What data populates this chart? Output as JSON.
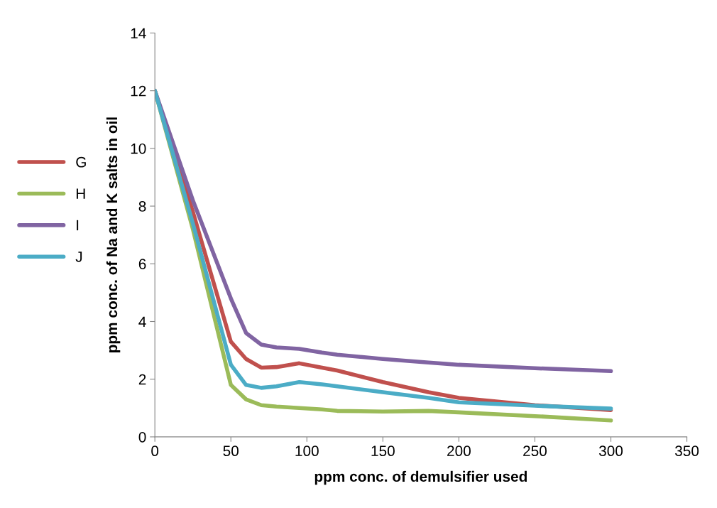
{
  "chart_data": {
    "type": "line",
    "xlabel": "ppm conc. of demulsifier used",
    "ylabel": "ppm conc. of Na and K salts in oil",
    "x": [
      0,
      25,
      50,
      60,
      70,
      80,
      95,
      110,
      120,
      150,
      180,
      200,
      250,
      300
    ],
    "series": [
      {
        "name": "G",
        "color": "#c0504d",
        "values": [
          12,
          7.8,
          3.3,
          2.7,
          2.4,
          2.42,
          2.55,
          2.4,
          2.3,
          1.9,
          1.55,
          1.35,
          1.1,
          0.93
        ]
      },
      {
        "name": "H",
        "color": "#9bbb59",
        "values": [
          12,
          7.2,
          1.8,
          1.3,
          1.1,
          1.05,
          1.0,
          0.95,
          0.9,
          0.88,
          0.9,
          0.85,
          0.72,
          0.57
        ]
      },
      {
        "name": "I",
        "color": "#8064a2",
        "values": [
          12,
          8.2,
          4.8,
          3.6,
          3.2,
          3.1,
          3.05,
          2.92,
          2.85,
          2.7,
          2.58,
          2.5,
          2.38,
          2.28
        ]
      },
      {
        "name": "J",
        "color": "#4bacc6",
        "values": [
          12,
          7.4,
          2.5,
          1.8,
          1.7,
          1.75,
          1.9,
          1.82,
          1.75,
          1.55,
          1.35,
          1.2,
          1.08,
          0.98
        ]
      }
    ],
    "xlim": [
      0,
      350
    ],
    "xticks": [
      0,
      50,
      100,
      150,
      200,
      250,
      300,
      350
    ],
    "ylim": [
      0,
      14
    ],
    "yticks": [
      0,
      2,
      4,
      6,
      8,
      10,
      12,
      14
    ],
    "grid": false,
    "legend": "left",
    "marker": "none",
    "line_style": "solid"
  }
}
